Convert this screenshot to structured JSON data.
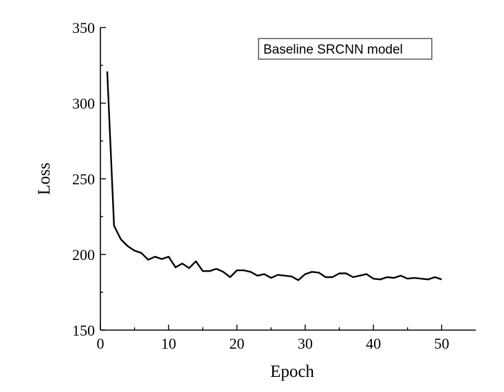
{
  "chart_data": {
    "type": "line",
    "xlabel": "Epoch",
    "ylabel": "Loss",
    "xlim": [
      0,
      55
    ],
    "ylim": [
      150,
      350
    ],
    "x_ticks": [
      0,
      10,
      20,
      30,
      40,
      50
    ],
    "y_ticks": [
      150,
      200,
      250,
      300,
      350
    ],
    "x_minor_step": 5,
    "y_minor_step": 25,
    "grid": false,
    "legend": {
      "placement": "top-right",
      "label": "Baseline SRCNN model"
    },
    "series": [
      {
        "name": "Baseline SRCNN model",
        "color": "#000000",
        "x": [
          1,
          2,
          3,
          4,
          5,
          6,
          7,
          8,
          9,
          10,
          11,
          12,
          13,
          14,
          15,
          16,
          17,
          18,
          19,
          20,
          21,
          22,
          23,
          24,
          25,
          26,
          27,
          28,
          29,
          30,
          31,
          32,
          33,
          34,
          35,
          36,
          37,
          38,
          39,
          40,
          41,
          42,
          43,
          44,
          45,
          46,
          47,
          48,
          49,
          50
        ],
        "values": [
          321,
          219,
          210,
          205.5,
          202.5,
          201,
          196.5,
          198.5,
          197,
          198.5,
          191.5,
          194,
          191,
          195.5,
          189,
          189,
          190.5,
          188.5,
          185,
          189.5,
          189.5,
          188.5,
          186,
          187,
          184.5,
          186.5,
          186,
          185.5,
          183,
          187,
          188.5,
          188,
          185,
          185,
          187.5,
          187.5,
          185,
          186,
          187,
          184,
          183.5,
          185,
          184.5,
          186,
          184,
          184.5,
          184,
          183.5,
          185,
          183.5
        ]
      }
    ]
  }
}
